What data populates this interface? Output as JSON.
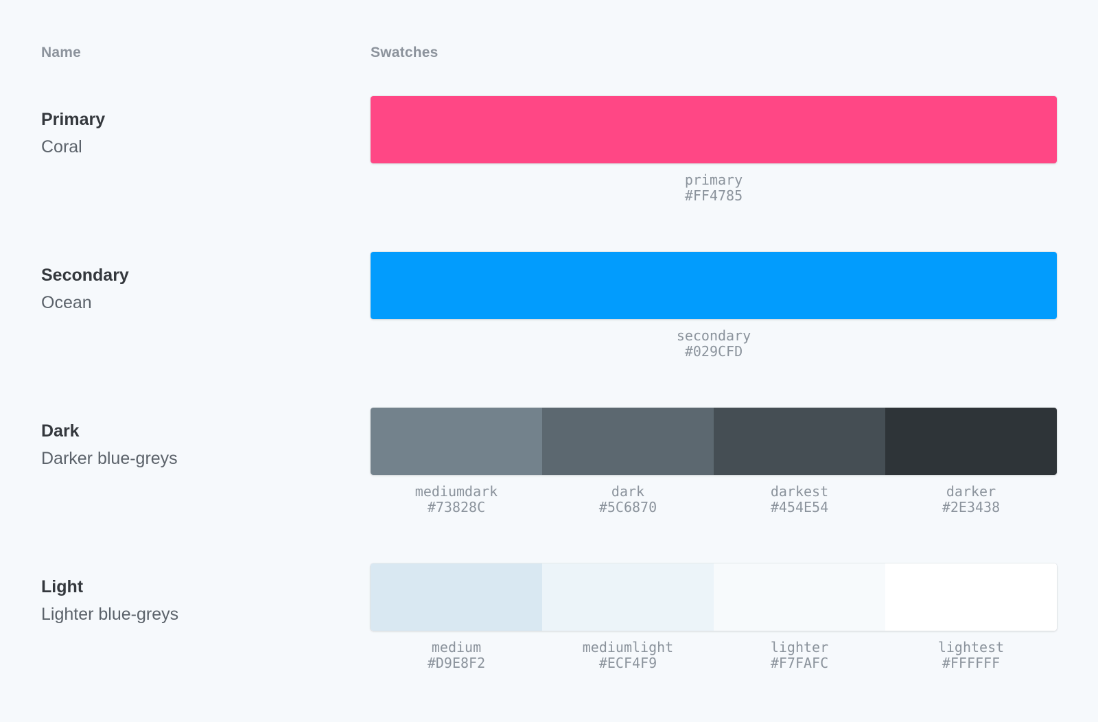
{
  "page": {
    "background": "#F6F9FC"
  },
  "headers": {
    "name": "Name",
    "swatches": "Swatches"
  },
  "rows": [
    {
      "title": "Primary",
      "subtitle": "Coral",
      "swatches": [
        {
          "name": "primary",
          "hex": "#FF4785"
        }
      ]
    },
    {
      "title": "Secondary",
      "subtitle": "Ocean",
      "swatches": [
        {
          "name": "secondary",
          "hex": "#029CFD"
        }
      ]
    },
    {
      "title": "Dark",
      "subtitle": "Darker blue-greys",
      "swatches": [
        {
          "name": "mediumdark",
          "hex": "#73828C"
        },
        {
          "name": "dark",
          "hex": "#5C6870"
        },
        {
          "name": "darkest",
          "hex": "#454E54"
        },
        {
          "name": "darker",
          "hex": "#2E3438"
        }
      ]
    },
    {
      "title": "Light",
      "subtitle": "Lighter blue-greys",
      "swatches": [
        {
          "name": "medium",
          "hex": "#D9E8F2"
        },
        {
          "name": "mediumlight",
          "hex": "#ECF4F9"
        },
        {
          "name": "lighter",
          "hex": "#F7FAFC"
        },
        {
          "name": "lightest",
          "hex": "#FFFFFF"
        }
      ]
    }
  ]
}
